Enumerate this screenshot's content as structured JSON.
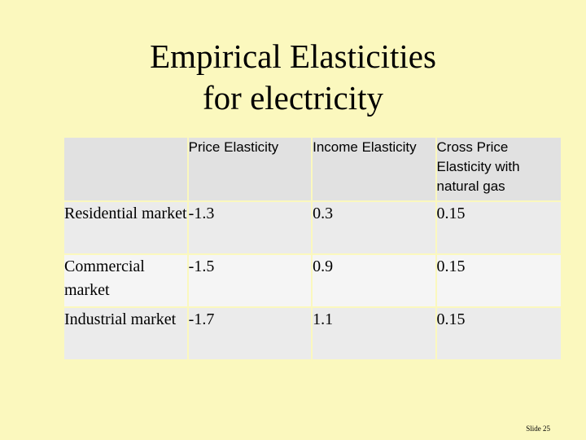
{
  "title": {
    "line1": "Empirical Elasticities",
    "line2": "for electricity"
  },
  "table": {
    "headers": [
      "",
      "Price Elasticity",
      "Income Elasticity",
      "Cross Price Elasticity with natural gas"
    ],
    "rows": [
      {
        "label": "Residential market",
        "price": "-1.3",
        "income": "0.3",
        "cross": "0.15"
      },
      {
        "label": "Commercial market",
        "price": "-1.5",
        "income": "0.9",
        "cross": "0.15"
      },
      {
        "label": "Industrial market",
        "price": "-1.7",
        "income": "1.1",
        "cross": "0.15"
      }
    ]
  },
  "footer": {
    "slide_number": "Slide 25"
  }
}
